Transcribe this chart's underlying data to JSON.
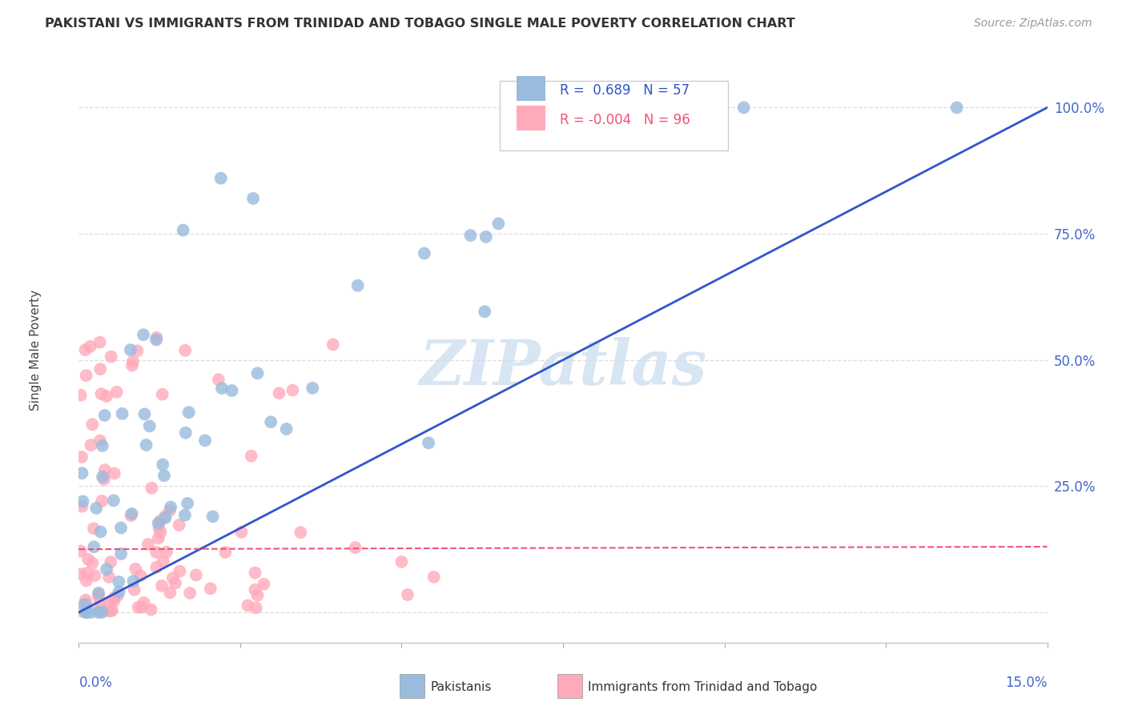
{
  "title": "PAKISTANI VS IMMIGRANTS FROM TRINIDAD AND TOBAGO SINGLE MALE POVERTY CORRELATION CHART",
  "source": "Source: ZipAtlas.com",
  "ylabel": "Single Male Poverty",
  "xmin": 0.0,
  "xmax": 0.15,
  "ymin": -0.06,
  "ymax": 1.1,
  "watermark": "ZIPatlas",
  "blue_R": 0.689,
  "blue_N": 57,
  "pink_R": -0.004,
  "pink_N": 96,
  "blue_color": "#99BBDD",
  "pink_color": "#FFAABB",
  "blue_line_color": "#3355CC",
  "pink_line_color": "#EE5577",
  "legend_label_blue": "Pakistanis",
  "legend_label_pink": "Immigrants from Trinidad and Tobago",
  "ytick_vals": [
    0.0,
    0.25,
    0.5,
    0.75,
    1.0
  ],
  "ytick_labels": [
    "",
    "25.0%",
    "50.0%",
    "75.0%",
    "100.0%"
  ],
  "blue_line_x": [
    0.0,
    0.15
  ],
  "blue_line_y": [
    0.0,
    1.0
  ],
  "pink_line_x": [
    0.0,
    0.15
  ],
  "pink_line_y": [
    0.125,
    0.13
  ],
  "grid_color": "#DDDDDD",
  "grid_style": "--",
  "right_tick_color": "#4466CC"
}
